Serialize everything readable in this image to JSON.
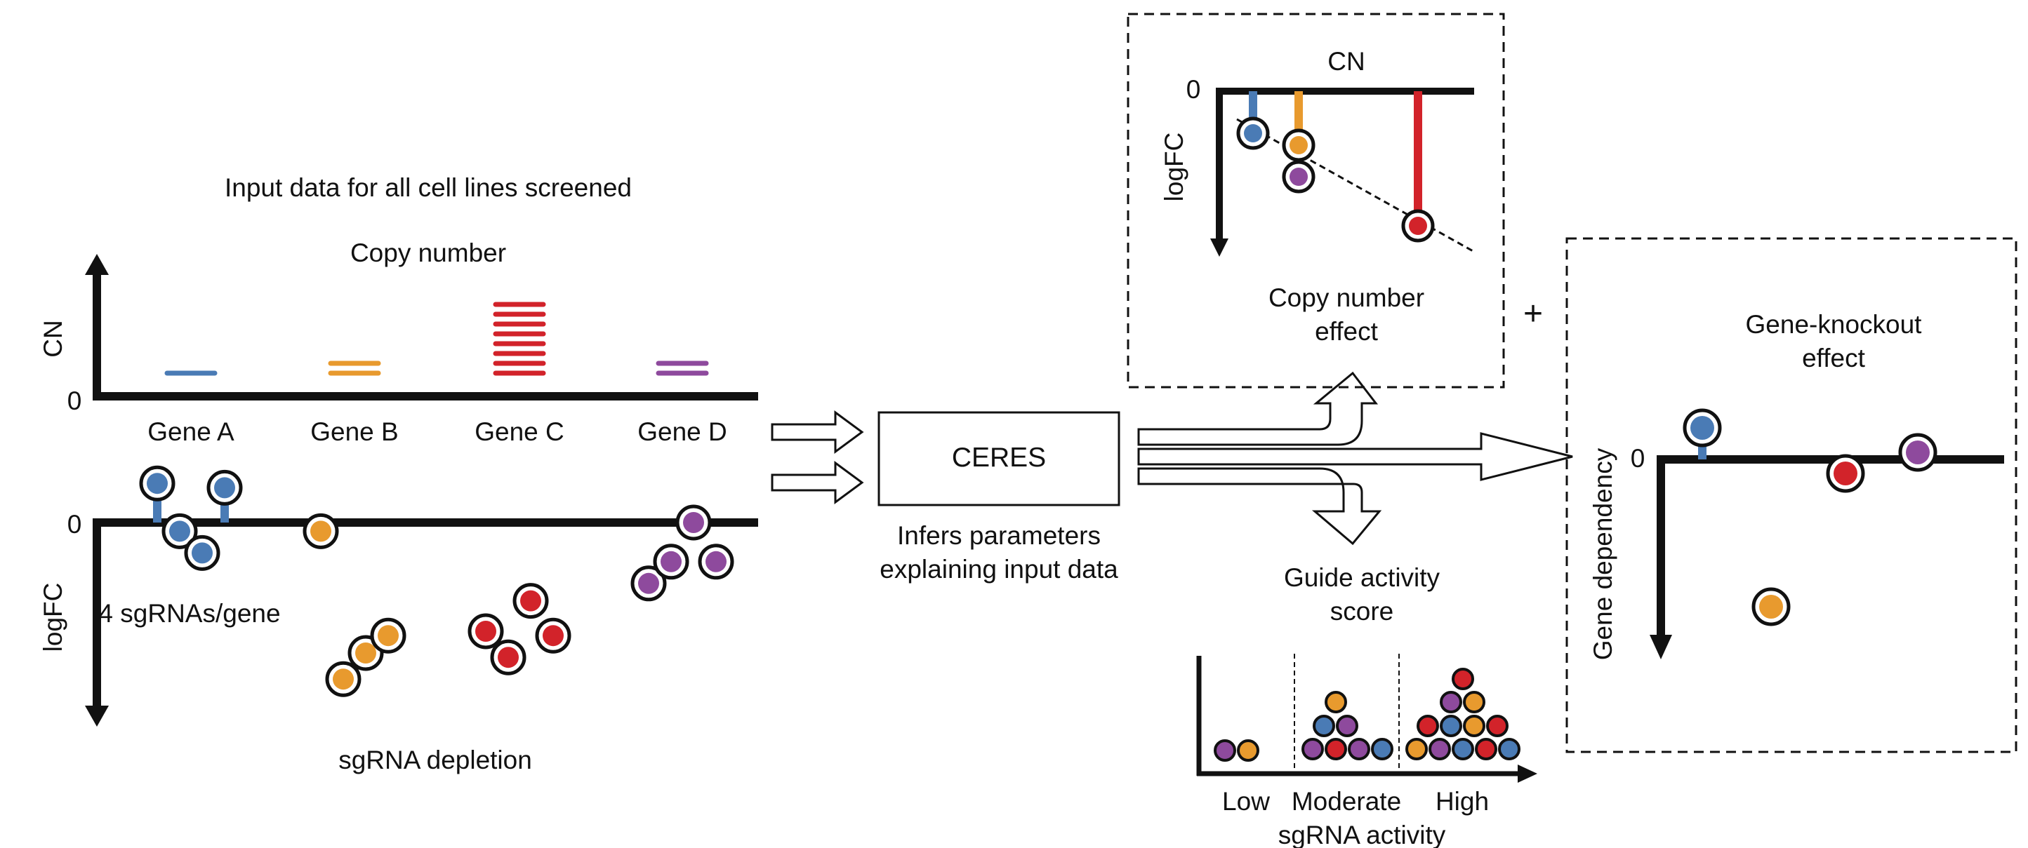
{
  "input": {
    "title": "Input data for all cell lines screened",
    "copy_number_title": "Copy number",
    "cn_axis": "CN",
    "zero": "0",
    "genes": [
      {
        "label": "Gene A",
        "color": "#4a7bb5",
        "copies": 1
      },
      {
        "label": "Gene B",
        "color": "#e89a2e",
        "copies": 2
      },
      {
        "label": "Gene C",
        "color": "#d2232a",
        "copies": 8
      },
      {
        "label": "Gene D",
        "color": "#8e4a9d",
        "copies": 2
      }
    ],
    "logfc_axis": "logFC",
    "sgrna_note": "4 sgRNAs/gene",
    "depletion_title": "sgRNA depletion",
    "sgrna_depletion": [
      {
        "gene": "Gene A",
        "logfc": [
          0.9,
          -0.2,
          -0.7,
          0.8
        ]
      },
      {
        "gene": "Gene B",
        "logfc": [
          -0.2,
          -3.6,
          -3.0,
          -2.6
        ]
      },
      {
        "gene": "Gene C",
        "logfc": [
          -2.5,
          -3.1,
          -1.8,
          -2.6
        ]
      },
      {
        "gene": "Gene D",
        "logfc": [
          -1.4,
          -0.9,
          0.0,
          -0.9
        ]
      }
    ]
  },
  "model": {
    "name": "CERES",
    "caption_line1": "Infers parameters",
    "caption_line2": "explaining input data"
  },
  "cn_effect": {
    "axis_top": "CN",
    "axis_left": "logFC",
    "zero": "0",
    "title_line1": "Copy number",
    "title_line2": "effect",
    "points": [
      {
        "gene": "Gene A",
        "color": "#4a7bb5"
      },
      {
        "gene": "Gene B",
        "color": "#e89a2e"
      },
      {
        "gene": "Gene D",
        "color": "#8e4a9d"
      },
      {
        "gene": "Gene C",
        "color": "#d2232a"
      }
    ]
  },
  "plus": "+",
  "knockout": {
    "title_line1": "Gene-knockout",
    "title_line2": "effect",
    "axis_left": "Gene dependency",
    "zero": "0",
    "points": [
      {
        "gene": "Gene A",
        "color": "#4a7bb5",
        "value": 0.45
      },
      {
        "gene": "Gene B",
        "color": "#e89a2e",
        "value": -2.1
      },
      {
        "gene": "Gene C",
        "color": "#d2232a",
        "value": -0.2
      },
      {
        "gene": "Gene D",
        "color": "#8e4a9d",
        "value": 0.1
      }
    ]
  },
  "guide": {
    "title_line1": "Guide activity",
    "title_line2": "score",
    "bins": [
      "Low",
      "Moderate",
      "High"
    ],
    "xlabel": "sgRNA activity"
  }
}
